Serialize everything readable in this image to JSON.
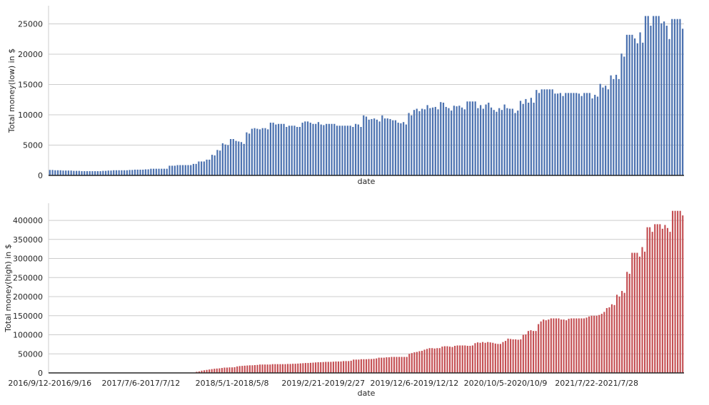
{
  "chart_data": [
    {
      "type": "bar",
      "color": "#4c72b0",
      "xlabel": "date",
      "ylabel": "Total money(low) in $",
      "ylim": [
        0,
        28000
      ],
      "yticks": [
        0,
        5000,
        10000,
        15000,
        20000,
        25000
      ],
      "grid": "horizontal",
      "xtick_labels_shown": false,
      "values": [
        900,
        900,
        850,
        850,
        850,
        800,
        800,
        800,
        800,
        750,
        750,
        750,
        700,
        700,
        700,
        700,
        700,
        700,
        700,
        700,
        750,
        750,
        800,
        800,
        850,
        850,
        850,
        850,
        850,
        850,
        900,
        900,
        950,
        950,
        950,
        950,
        1000,
        1000,
        1100,
        1100,
        1100,
        1100,
        1100,
        1100,
        1100,
        1600,
        1600,
        1600,
        1700,
        1700,
        1700,
        1700,
        1700,
        1700,
        1900,
        1900,
        2300,
        2300,
        2300,
        2600,
        2600,
        3400,
        3300,
        4200,
        4100,
        5300,
        5100,
        5000,
        6000,
        6000,
        5700,
        5600,
        5500,
        5200,
        7100,
        6900,
        7700,
        7800,
        7700,
        7600,
        7800,
        7800,
        7600,
        8700,
        8700,
        8400,
        8500,
        8500,
        8500,
        8000,
        8200,
        8200,
        8200,
        8000,
        8000,
        8700,
        8900,
        8900,
        8700,
        8500,
        8500,
        8800,
        8400,
        8300,
        8500,
        8500,
        8500,
        8500,
        8200,
        8200,
        8200,
        8200,
        8200,
        8200,
        8000,
        8500,
        8400,
        8000,
        9900,
        9700,
        9200,
        9300,
        9400,
        9200,
        8900,
        9900,
        9400,
        9400,
        9300,
        9100,
        9100,
        8700,
        8600,
        8800,
        8400,
        10300,
        9900,
        10800,
        11000,
        10600,
        11000,
        10900,
        11600,
        11100,
        11200,
        11300,
        10900,
        12100,
        12000,
        11300,
        11100,
        10700,
        11500,
        11400,
        11500,
        11200,
        10900,
        12200,
        12200,
        12200,
        12200,
        11100,
        11600,
        11000,
        11700,
        12000,
        11200,
        10800,
        10500,
        11100,
        10800,
        11700,
        11100,
        11000,
        11000,
        10300,
        10700,
        12300,
        11800,
        12600,
        12000,
        12800,
        12000,
        14100,
        13600,
        14200,
        14200,
        14200,
        14200,
        14200,
        13500,
        13500,
        13600,
        13100,
        13600,
        13600,
        13600,
        13600,
        13600,
        13500,
        13100,
        13600,
        13600,
        13600,
        12700,
        13300,
        13000,
        15100,
        14500,
        14800,
        14200,
        16500,
        15900,
        16600,
        15900,
        20100,
        19600,
        23200,
        23200,
        23200,
        22600,
        21800,
        23600,
        21900,
        26300,
        26300,
        24700,
        26300,
        26300,
        26300,
        25100,
        25400,
        24700,
        22500,
        25800,
        25800,
        25800,
        25800,
        24200
      ]
    },
    {
      "type": "bar",
      "color": "#c44e52",
      "xlabel": "date",
      "ylabel": "Total money(high) in $",
      "ylim": [
        0,
        445000
      ],
      "yticks": [
        0,
        50000,
        100000,
        150000,
        200000,
        250000,
        300000,
        350000,
        400000
      ],
      "grid": "horizontal",
      "xtick_labels": [
        "2016/9/12-2016/9/16",
        "2017/7/6-2017/7/12",
        "2018/5/1-2018/5/8",
        "2019/2/21-2019/2/27",
        "2019/12/6-2019/12/12",
        "2020/10/5-2020/10/9",
        "2021/7/22-2021/7/28"
      ],
      "values": [
        0,
        0,
        0,
        0,
        0,
        0,
        0,
        0,
        0,
        0,
        0,
        0,
        0,
        0,
        0,
        0,
        0,
        0,
        0,
        0,
        0,
        0,
        0,
        0,
        0,
        0,
        0,
        0,
        0,
        0,
        0,
        0,
        0,
        0,
        0,
        0,
        0,
        0,
        0,
        0,
        0,
        0,
        0,
        0,
        0,
        0,
        0,
        0,
        0,
        0,
        0,
        0,
        0,
        0,
        0,
        0,
        0,
        0,
        3000,
        4000,
        6000,
        7000,
        8000,
        9000,
        10000,
        11000,
        11500,
        12000,
        13000,
        14000,
        14000,
        14500,
        14500,
        15000,
        17000,
        18000,
        18500,
        19000,
        19500,
        20000,
        20000,
        20500,
        21000,
        22000,
        22000,
        22000,
        22000,
        22000,
        23000,
        23000,
        23000,
        23000,
        23000,
        23000,
        23500,
        23500,
        24000,
        24000,
        24500,
        25000,
        25500,
        26000,
        26000,
        26500,
        27000,
        27500,
        28000,
        28000,
        28500,
        29000,
        29000,
        29000,
        29500,
        30000,
        30000,
        30000,
        31000,
        31000,
        31000,
        32000,
        35000,
        35000,
        35000,
        36000,
        36000,
        36000,
        36500,
        36500,
        37000,
        38000,
        40000,
        40000,
        40000,
        41000,
        41000,
        42000,
        42000,
        42000,
        42000,
        42000,
        42000,
        42000,
        50000,
        52000,
        54000,
        55000,
        57000,
        58000,
        61000,
        63000,
        65000,
        65000,
        64000,
        65000,
        65000,
        69000,
        70000,
        70000,
        69000,
        68000,
        71000,
        72000,
        72000,
        72000,
        72000,
        71000,
        71000,
        72000,
        78000,
        80000,
        79000,
        81000,
        79000,
        81000,
        80000,
        79000,
        77000,
        76000,
        76000,
        81000,
        84000,
        90000,
        89000,
        88000,
        88000,
        87000,
        88000,
        100000,
        101000,
        110000,
        112000,
        110000,
        110000,
        128000,
        135000,
        140000,
        138000,
        140000,
        143000,
        143000,
        143000,
        143000,
        140000,
        140000,
        138000,
        142000,
        143000,
        143000,
        143000,
        143000,
        143000,
        143000,
        145000,
        148000,
        150000,
        150000,
        150000,
        152000,
        155000,
        160000,
        170000,
        172000,
        180000,
        178000,
        205000,
        200000,
        215000,
        210000,
        265000,
        260000,
        315000,
        315000,
        315000,
        305000,
        330000,
        318000,
        382000,
        382000,
        370000,
        390000,
        390000,
        390000,
        378000,
        388000,
        380000,
        370000,
        425000,
        425000,
        425000,
        425000,
        413000
      ]
    }
  ]
}
